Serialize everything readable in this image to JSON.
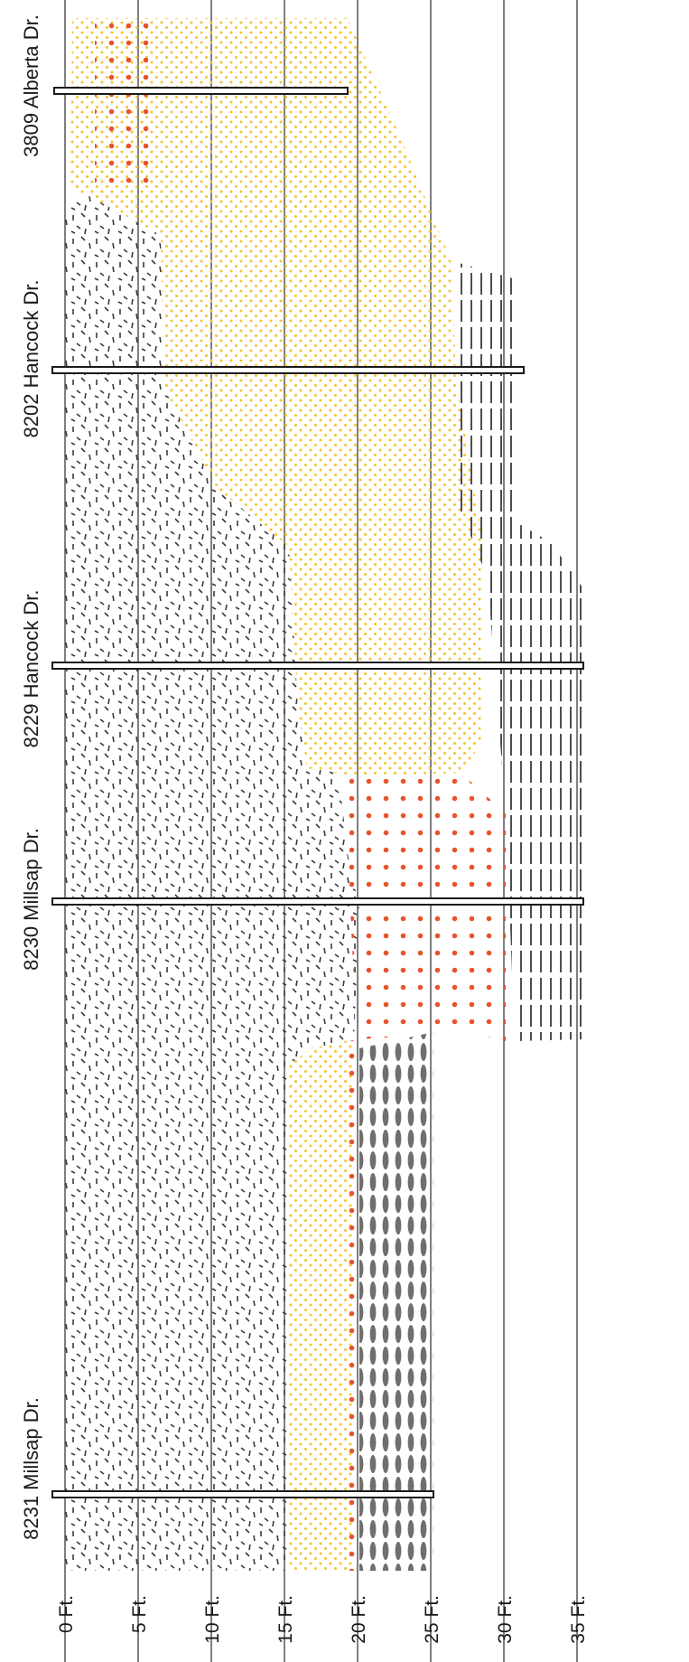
{
  "depth_labels": [
    "0 Ft.",
    "5 Ft.",
    "10 Ft.",
    "15 Ft.",
    "20 Ft.",
    "25 Ft.",
    "30 Ft.",
    "35 Ft."
  ],
  "borings": [
    {
      "address": "8231 Millsap Dr.",
      "bottom_depth_ft": 25
    },
    {
      "address": "8230 Millsap Dr.",
      "bottom_depth_ft": 35
    },
    {
      "address": "8229 Hancock Dr.",
      "bottom_depth_ft": 35
    },
    {
      "address": "8202 Hancock Dr.",
      "bottom_depth_ft": 31
    },
    {
      "address": "3809 Alberta Dr.",
      "bottom_depth_ft": 19.5
    }
  ],
  "colors": {
    "dash_layer": "#3a3a3a",
    "yellow_dot_layer": "#f5c330",
    "orange_dot_layer": "#e8532b",
    "gray_oval_layer": "#6f6f6f",
    "vertical_hatch_layer": "#3a3a3a",
    "pipe_stroke": "#1a1a1a"
  }
}
